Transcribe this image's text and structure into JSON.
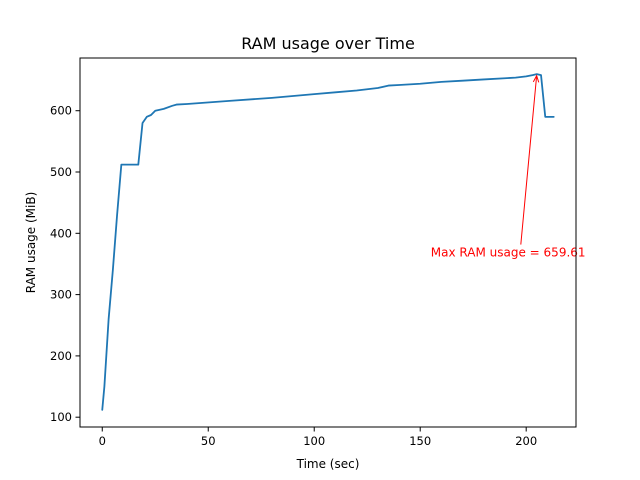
{
  "chart_data": {
    "type": "line",
    "title": "RAM usage over Time",
    "xlabel": "Time (sec)",
    "ylabel": "RAM usage (MiB)",
    "xlim": [
      -10.5,
      223.5
    ],
    "ylim": [
      84,
      686
    ],
    "xticks": [
      0,
      50,
      100,
      150,
      200
    ],
    "yticks": [
      100,
      200,
      300,
      400,
      500,
      600
    ],
    "grid": false,
    "colors": {
      "series": "#1f77b4",
      "annotation": "#ff0000"
    },
    "series": [
      {
        "x": [
          0,
          1,
          3,
          5,
          7,
          9,
          17,
          19,
          21,
          23,
          25,
          29,
          33,
          35,
          40,
          60,
          80,
          100,
          110,
          120,
          125,
          130,
          135,
          140,
          145,
          150,
          160,
          170,
          180,
          190,
          195,
          200,
          203,
          205,
          207,
          209,
          213
        ],
        "y": [
          112,
          150,
          260,
          340,
          430,
          512,
          512,
          580,
          590,
          593,
          600,
          603,
          608,
          610,
          611,
          616,
          621,
          627,
          630,
          633,
          635,
          637,
          641,
          642,
          643,
          644,
          647,
          649,
          651,
          653,
          654,
          656,
          658,
          659.61,
          658,
          590,
          590
        ]
      }
    ],
    "annotation": {
      "text": "Max RAM usage = 659.61",
      "point": [
        205,
        659.61
      ],
      "text_anchor_point": [
        155,
        362
      ]
    }
  }
}
